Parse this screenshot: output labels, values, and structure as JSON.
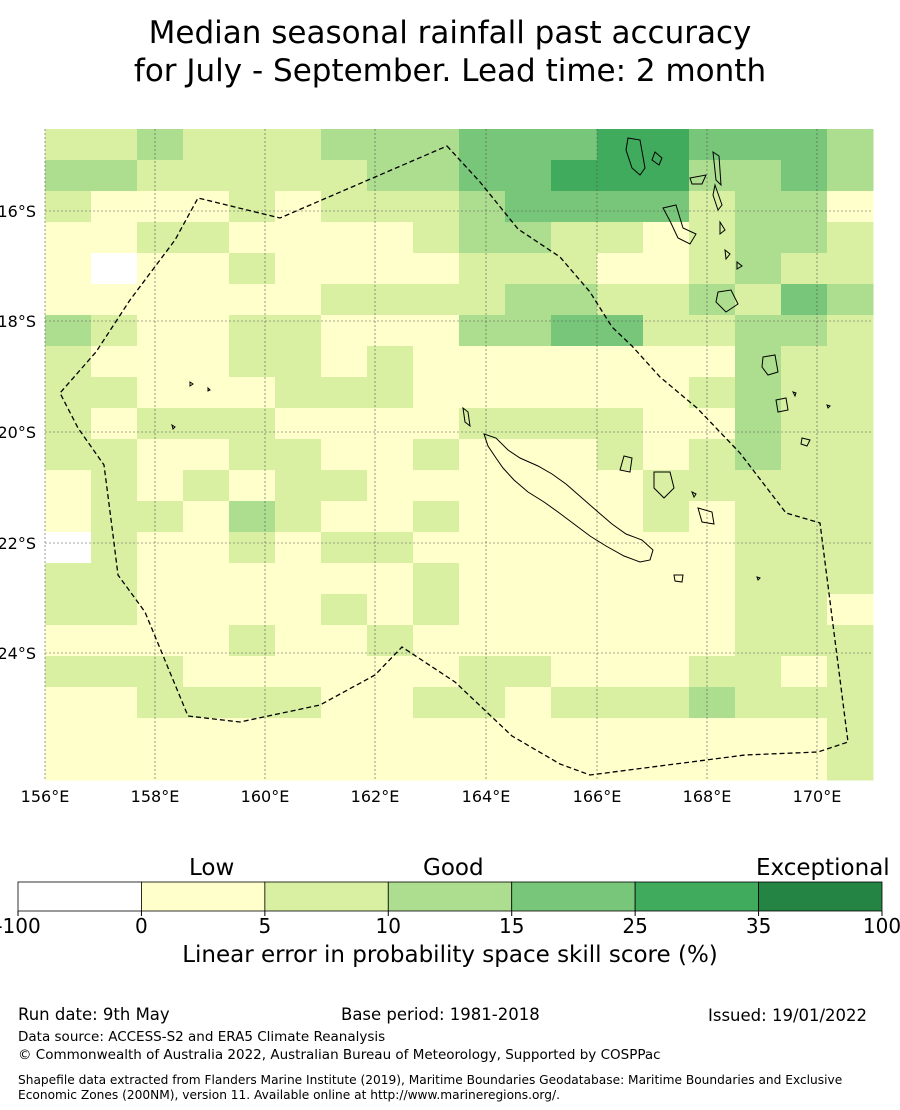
{
  "title": {
    "line1": "Median seasonal rainfall past accuracy",
    "line2": "for July - September. Lead time: 2 month"
  },
  "map": {
    "lon_ticks": [
      "156°E",
      "158°E",
      "160°E",
      "162°E",
      "164°E",
      "166°E",
      "168°E",
      "170°E"
    ],
    "lat_ticks": [
      "16°S",
      "18°S",
      "20°S",
      "22°S",
      "24°S"
    ]
  },
  "colorbar": {
    "categories": [
      "Low",
      "Good",
      "Exceptional"
    ],
    "tick_labels": [
      "-100",
      "0",
      "5",
      "10",
      "15",
      "25",
      "35",
      "100"
    ],
    "colors": [
      "#ffffff",
      "#ffffcc",
      "#d9f0a3",
      "#addd8e",
      "#78c679",
      "#41ab5d",
      "#238443"
    ],
    "label": "Linear error in probability space skill score (%)"
  },
  "footer": {
    "run_date": "Run date: 9th May",
    "base_period": "Base period: 1981-2018",
    "issued": "Issued: 19/01/2022",
    "data_source": "Data source: ACCESS-S2 and ERA5 Climate Reanalysis",
    "copyright": "© Commonwealth of Australia 2022, Australian Bureau of Meteorology, Supported by COSPPac",
    "shapefile": "Shapefile data extracted from Flanders Marine Institute (2019), Maritime Boundaries Geodatabase: Maritime Boundaries and Exclusive Economic Zones (200NM), version 11. Available online at http://www.marineregions.org/."
  }
}
